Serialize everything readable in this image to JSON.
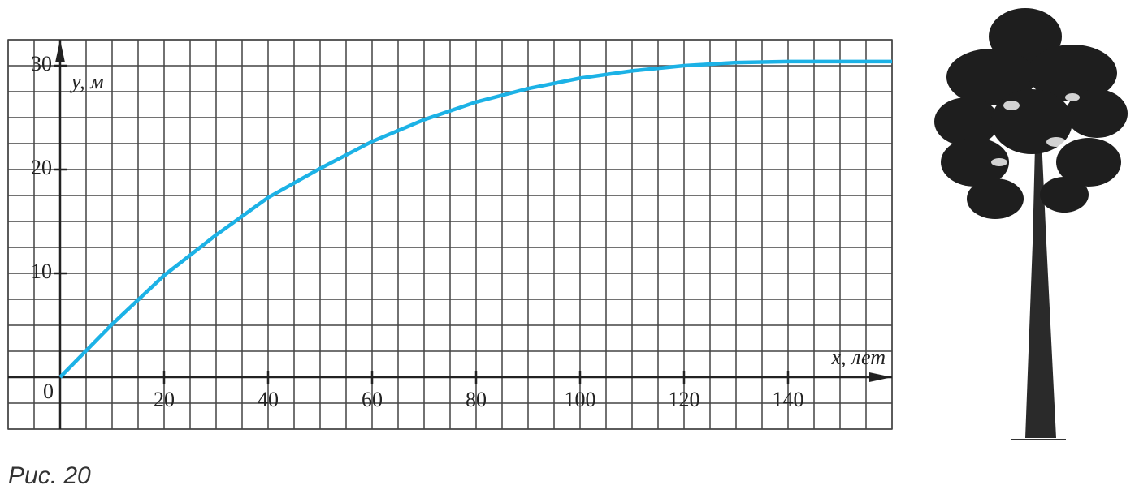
{
  "chart_data": {
    "type": "line",
    "x_label": "x, лет",
    "y_label": "y, м",
    "caption": "Рис. 20",
    "x": [
      0,
      10,
      20,
      30,
      40,
      50,
      60,
      70,
      80,
      90,
      100,
      110,
      120,
      130,
      140,
      150,
      160
    ],
    "series": [
      {
        "name": "y",
        "color": "#1cb2e6",
        "values": [
          0,
          5.1,
          9.8,
          13.7,
          17.3,
          20.1,
          22.7,
          24.8,
          26.5,
          27.8,
          28.8,
          29.5,
          30,
          30.3,
          30.4,
          30.4,
          30.4
        ]
      }
    ],
    "xlim": [
      -10,
      160
    ],
    "ylim": [
      -5,
      32.5
    ],
    "xticks": [
      20,
      40,
      60,
      80,
      100,
      120,
      140
    ],
    "yticks": [
      0,
      10,
      20,
      30
    ],
    "grid": true
  }
}
